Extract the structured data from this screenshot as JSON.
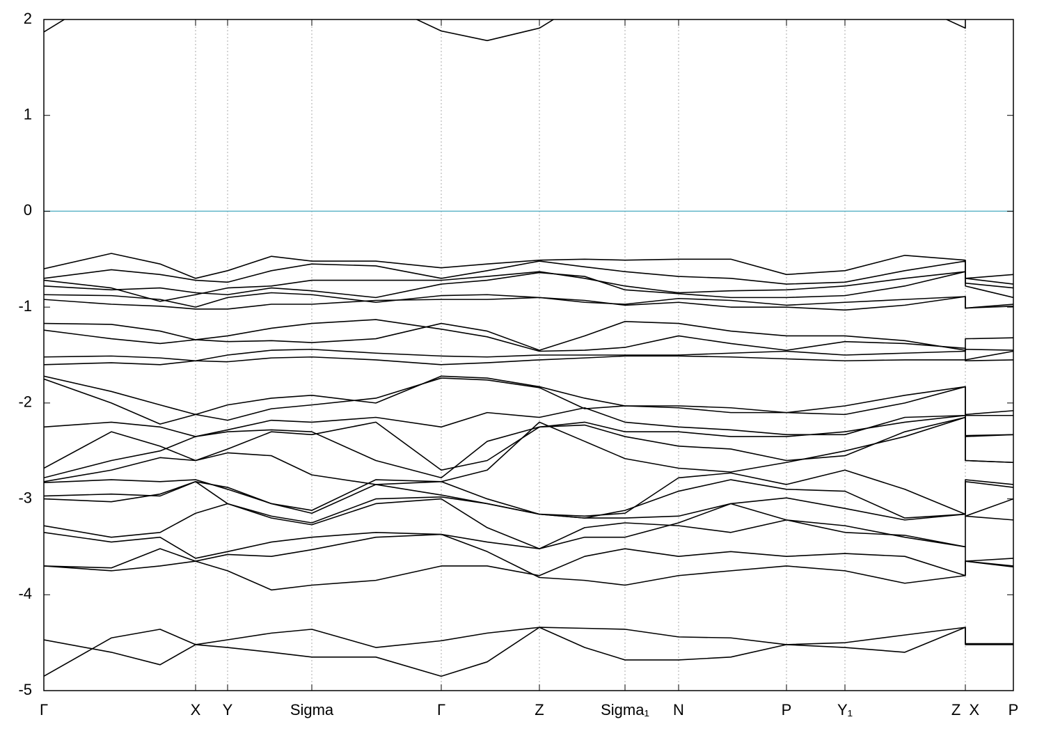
{
  "chart_data": {
    "type": "line",
    "x": [
      0,
      0.97,
      1.67,
      2.18,
      2.64,
      3.27,
      3.85,
      4.77,
      5.71,
      6.37,
      7.12,
      7.77,
      8.35,
      9.12,
      9.87,
      10.67,
      11.51,
      12.37,
      13.24,
      13.24,
      13.93
    ],
    "xlim": [
      0,
      13.93
    ],
    "xticks": [
      {
        "value": 0,
        "label": "Γ"
      },
      {
        "value": 2.18,
        "label": "X"
      },
      {
        "value": 2.64,
        "label": "Y"
      },
      {
        "value": 3.85,
        "label": "Sigma"
      },
      {
        "value": 5.71,
        "label": "Γ"
      },
      {
        "value": 7.12,
        "label": "Z"
      },
      {
        "value": 8.35,
        "label": "Sigma₁"
      },
      {
        "value": 9.12,
        "label": "N"
      },
      {
        "value": 10.67,
        "label": "P"
      },
      {
        "value": 11.51,
        "label": "Y₁"
      },
      {
        "value": 13.24,
        "label": "Z  X"
      },
      {
        "value": 13.93,
        "label": "P"
      }
    ],
    "ylim": [
      -5,
      2
    ],
    "yticks": [
      -5,
      -4,
      -3,
      -2,
      -1,
      0,
      1,
      2
    ],
    "xgrid": true,
    "color": "#000000",
    "hline": 0,
    "hline_color": "#5fb4c8",
    "series": [
      {
        "values": [
          1.87,
          2.3,
          2.4,
          2.5,
          2.5,
          2.5,
          2.4,
          2.2,
          1.88,
          1.78,
          1.91,
          2.2,
          2.4,
          2.5,
          2.5,
          2.5,
          2.4,
          2.2,
          1.91,
          2.5,
          2.5
        ]
      },
      {
        "values": [
          -0.6,
          -0.44,
          -0.55,
          -0.7,
          -0.62,
          -0.47,
          -0.52,
          -0.52,
          -0.59,
          -0.55,
          -0.51,
          -0.5,
          -0.51,
          -0.5,
          -0.5,
          -0.66,
          -0.62,
          -0.46,
          -0.51,
          -0.7,
          -0.66
        ]
      },
      {
        "values": [
          -0.7,
          -0.61,
          -0.66,
          -0.72,
          -0.74,
          -0.62,
          -0.55,
          -0.57,
          -0.7,
          -0.62,
          -0.52,
          -0.58,
          -0.63,
          -0.68,
          -0.7,
          -0.76,
          -0.74,
          -0.62,
          -0.52,
          -0.7,
          -0.76
        ]
      },
      {
        "values": [
          -0.72,
          -0.8,
          -0.94,
          -0.87,
          -0.8,
          -0.78,
          -0.72,
          -0.72,
          -0.72,
          -0.68,
          -0.63,
          -0.7,
          -0.78,
          -0.85,
          -0.83,
          -0.82,
          -0.78,
          -0.7,
          -0.63,
          -0.75,
          -0.8
        ]
      },
      {
        "values": [
          -0.78,
          -0.82,
          -0.8,
          -0.85,
          -0.87,
          -0.8,
          -0.83,
          -0.9,
          -0.76,
          -0.72,
          -0.64,
          -0.68,
          -0.82,
          -0.86,
          -0.9,
          -0.9,
          -0.88,
          -0.78,
          -0.63,
          -0.78,
          -0.9
        ]
      },
      {
        "values": [
          -0.87,
          -0.88,
          -0.92,
          -1.0,
          -0.9,
          -0.85,
          -0.87,
          -0.95,
          -0.88,
          -0.87,
          -0.9,
          -0.95,
          -0.97,
          -0.91,
          -0.93,
          -0.98,
          -0.95,
          -0.92,
          -0.89,
          -1.01,
          -0.99
        ]
      },
      {
        "values": [
          -0.92,
          -0.97,
          -0.99,
          -1.02,
          -1.02,
          -0.97,
          -0.97,
          -0.93,
          -0.92,
          -0.92,
          -0.9,
          -0.93,
          -0.98,
          -0.95,
          -1.0,
          -1.0,
          -1.03,
          -0.98,
          -0.89,
          -1.01,
          -0.97
        ]
      },
      {
        "values": [
          -1.17,
          -1.18,
          -1.25,
          -1.34,
          -1.36,
          -1.35,
          -1.37,
          -1.33,
          -1.17,
          -1.25,
          -1.45,
          -1.3,
          -1.15,
          -1.17,
          -1.25,
          -1.3,
          -1.3,
          -1.35,
          -1.45,
          -1.33,
          -1.32
        ]
      },
      {
        "values": [
          -1.24,
          -1.33,
          -1.38,
          -1.34,
          -1.3,
          -1.22,
          -1.17,
          -1.13,
          -1.23,
          -1.31,
          -1.46,
          -1.45,
          -1.42,
          -1.3,
          -1.38,
          -1.45,
          -1.36,
          -1.38,
          -1.43,
          -1.55,
          -1.46
        ]
      },
      {
        "values": [
          -1.52,
          -1.51,
          -1.53,
          -1.56,
          -1.5,
          -1.45,
          -1.44,
          -1.48,
          -1.51,
          -1.52,
          -1.5,
          -1.5,
          -1.5,
          -1.5,
          -1.48,
          -1.46,
          -1.5,
          -1.48,
          -1.46,
          -1.44,
          -1.45
        ]
      },
      {
        "values": [
          -1.6,
          -1.58,
          -1.6,
          -1.56,
          -1.57,
          -1.53,
          -1.52,
          -1.55,
          -1.6,
          -1.58,
          -1.55,
          -1.53,
          -1.51,
          -1.51,
          -1.52,
          -1.54,
          -1.56,
          -1.55,
          -1.55,
          -1.56,
          -1.55
        ]
      },
      {
        "values": [
          -1.72,
          -1.88,
          -2.02,
          -2.12,
          -2.02,
          -1.95,
          -1.92,
          -2.0,
          -1.72,
          -1.74,
          -1.83,
          -1.95,
          -2.03,
          -2.03,
          -2.05,
          -2.1,
          -2.03,
          -1.92,
          -1.83,
          -2.12,
          -2.08
        ]
      },
      {
        "values": [
          -1.75,
          -2.0,
          -2.22,
          -2.12,
          -2.18,
          -2.06,
          -2.02,
          -1.95,
          -1.74,
          -1.76,
          -1.84,
          -2.06,
          -2.03,
          -2.05,
          -2.1,
          -2.1,
          -2.12,
          -2.0,
          -1.83,
          -2.13,
          -2.13
        ]
      },
      {
        "values": [
          -2.25,
          -2.2,
          -2.25,
          -2.35,
          -2.28,
          -2.18,
          -2.2,
          -2.15,
          -2.25,
          -2.1,
          -2.15,
          -2.05,
          -2.2,
          -2.25,
          -2.28,
          -2.33,
          -2.33,
          -2.15,
          -2.13,
          -2.34,
          -2.33
        ]
      },
      {
        "values": [
          -2.68,
          -2.3,
          -2.45,
          -2.6,
          -2.48,
          -2.3,
          -2.33,
          -2.2,
          -2.7,
          -2.6,
          -2.25,
          -2.2,
          -2.3,
          -2.3,
          -2.35,
          -2.35,
          -2.3,
          -2.2,
          -2.13,
          -2.35,
          -2.33
        ]
      },
      {
        "values": [
          -2.78,
          -2.6,
          -2.5,
          -2.35,
          -2.3,
          -2.28,
          -2.3,
          -2.6,
          -2.78,
          -2.4,
          -2.25,
          -2.23,
          -2.35,
          -2.45,
          -2.48,
          -2.6,
          -2.55,
          -2.3,
          -2.15,
          -2.6,
          -2.62
        ]
      },
      {
        "values": [
          -2.82,
          -2.7,
          -2.57,
          -2.6,
          -2.52,
          -2.55,
          -2.75,
          -2.85,
          -2.82,
          -2.7,
          -2.2,
          -2.4,
          -2.58,
          -2.68,
          -2.72,
          -2.62,
          -2.5,
          -2.35,
          -2.15,
          -2.6,
          -2.62
        ]
      },
      {
        "values": [
          -2.83,
          -2.8,
          -2.82,
          -2.8,
          -2.9,
          -3.05,
          -3.12,
          -2.8,
          -2.82,
          -3.0,
          -3.16,
          -3.18,
          -3.15,
          -2.78,
          -2.73,
          -2.85,
          -2.7,
          -2.9,
          -3.16,
          -2.8,
          -2.85
        ]
      },
      {
        "values": [
          -2.97,
          -2.95,
          -2.97,
          -2.82,
          -2.88,
          -3.05,
          -3.15,
          -2.85,
          -2.96,
          -3.05,
          -3.16,
          -3.2,
          -3.12,
          -2.92,
          -2.8,
          -2.9,
          -2.92,
          -3.2,
          -3.16,
          -2.82,
          -2.88
        ]
      },
      {
        "values": [
          -3.0,
          -3.03,
          -2.95,
          -2.82,
          -3.05,
          -3.18,
          -3.25,
          -3.0,
          -2.98,
          -3.05,
          -3.16,
          -3.2,
          -3.2,
          -3.18,
          -3.05,
          -2.99,
          -3.1,
          -3.22,
          -3.16,
          -3.18,
          -3.0
        ]
      },
      {
        "values": [
          -3.28,
          -3.4,
          -3.35,
          -3.15,
          -3.05,
          -3.2,
          -3.27,
          -3.05,
          -3.0,
          -3.3,
          -3.52,
          -3.4,
          -3.4,
          -3.25,
          -3.05,
          -3.22,
          -3.28,
          -3.4,
          -3.5,
          -3.18,
          -3.22
        ]
      },
      {
        "values": [
          -3.35,
          -3.45,
          -3.4,
          -3.62,
          -3.55,
          -3.45,
          -3.4,
          -3.35,
          -3.37,
          -3.45,
          -3.52,
          -3.3,
          -3.25,
          -3.28,
          -3.35,
          -3.22,
          -3.35,
          -3.38,
          -3.5,
          -3.65,
          -3.62
        ]
      },
      {
        "values": [
          -3.7,
          -3.72,
          -3.52,
          -3.65,
          -3.75,
          -3.95,
          -3.9,
          -3.85,
          -3.7,
          -3.7,
          -3.8,
          -3.6,
          -3.52,
          -3.6,
          -3.55,
          -3.6,
          -3.57,
          -3.6,
          -3.8,
          -3.65,
          -3.7
        ]
      },
      {
        "values": [
          -3.7,
          -3.75,
          -3.7,
          -3.65,
          -3.58,
          -3.6,
          -3.53,
          -3.4,
          -3.37,
          -3.55,
          -3.82,
          -3.85,
          -3.9,
          -3.8,
          -3.75,
          -3.7,
          -3.75,
          -3.88,
          -3.8,
          -3.65,
          -3.71
        ]
      },
      {
        "values": [
          -4.47,
          -4.6,
          -4.73,
          -4.52,
          -4.47,
          -4.4,
          -4.36,
          -4.55,
          -4.48,
          -4.4,
          -4.34,
          -4.35,
          -4.36,
          -4.44,
          -4.45,
          -4.52,
          -4.5,
          -4.42,
          -4.34,
          -4.51,
          -4.51
        ]
      },
      {
        "values": [
          -4.85,
          -4.45,
          -4.36,
          -4.52,
          -4.55,
          -4.6,
          -4.65,
          -4.65,
          -4.85,
          -4.7,
          -4.34,
          -4.55,
          -4.68,
          -4.68,
          -4.65,
          -4.52,
          -4.55,
          -4.6,
          -4.34,
          -4.52,
          -4.52
        ]
      }
    ]
  }
}
